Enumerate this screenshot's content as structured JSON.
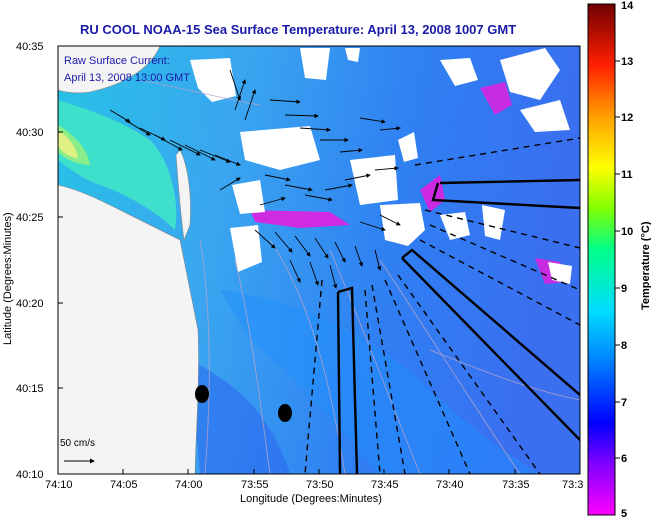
{
  "title": "RU COOL  NOAA-15  Sea Surface Temperature:  April 13, 2008 1007 GMT",
  "overlay_note": {
    "line1": "Raw Surface Current:",
    "line2": "April 13, 2008 13:00 GMT"
  },
  "scale_label": "50 cm/s",
  "axes": {
    "x_label": "Longitude (Degrees:Minutes)",
    "y_label": "Latitude (Degrees:Minutes)",
    "x_ticks": [
      "74:10",
      "74:05",
      "74:00",
      "73:55",
      "73:50",
      "73:45",
      "73:40",
      "73:35",
      "73:3"
    ],
    "y_ticks": [
      "40:35",
      "40:30",
      "40:25",
      "40:20",
      "40:15",
      "40:10"
    ]
  },
  "colorbar": {
    "label": "Temperature (°C)",
    "ticks": [
      "14",
      "13",
      "12",
      "11",
      "10",
      "9",
      "8",
      "7",
      "6",
      "5"
    ],
    "min": 5,
    "max": 14
  },
  "colors": {
    "title": "#1a1aa8",
    "land": "#f5f5f5",
    "cloud": "#ffffff",
    "shelf_lines": "#000000"
  },
  "icons": {
    "station_marker": "filled-circle",
    "current_vector": "arrow"
  }
}
